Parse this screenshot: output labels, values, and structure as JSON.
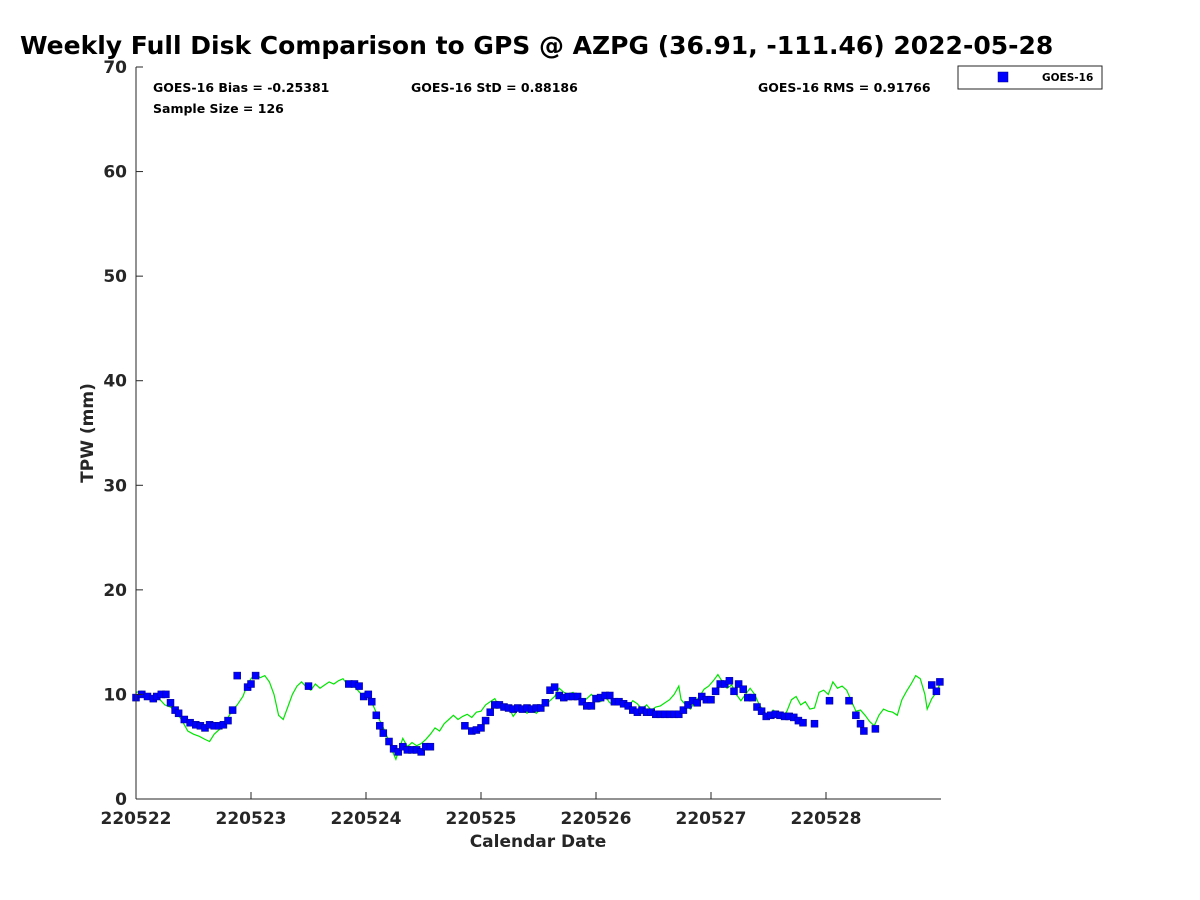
{
  "chart_data": {
    "type": "scatter",
    "title": "Weekly Full Disk Comparison to GPS @ AZPG (36.91, -111.46) 2022-05-28",
    "xlabel": "Calendar Date",
    "ylabel": "TPW (mm)",
    "xlim": [
      0,
      7
    ],
    "ylim": [
      0,
      70
    ],
    "x_unit": "days since 220522 00Z",
    "xticks": [
      {
        "value": 0,
        "label": "220522"
      },
      {
        "value": 1,
        "label": "220523"
      },
      {
        "value": 2,
        "label": "220524"
      },
      {
        "value": 3,
        "label": "220525"
      },
      {
        "value": 4,
        "label": "220526"
      },
      {
        "value": 5,
        "label": "220527"
      },
      {
        "value": 6,
        "label": "220528"
      }
    ],
    "yticks": [
      0,
      10,
      20,
      30,
      40,
      50,
      60,
      70
    ],
    "grid": false,
    "legend": {
      "position": "top-right outside",
      "entries": [
        "GOES-16"
      ]
    },
    "stats": {
      "bias": "GOES-16 Bias = -0.25381",
      "std": "GOES-16 StD = 0.88186",
      "rms": "GOES-16 RMS = 0.91766",
      "sample": "Sample Size = 126"
    },
    "series": [
      {
        "name": "GOES-16",
        "kind": "scatter",
        "marker": "square",
        "color": "#0000ff",
        "points": [
          [
            0.0,
            9.7
          ],
          [
            0.05,
            10.0
          ],
          [
            0.1,
            9.8
          ],
          [
            0.15,
            9.6
          ],
          [
            0.18,
            9.8
          ],
          [
            0.22,
            10.0
          ],
          [
            0.26,
            10.0
          ],
          [
            0.3,
            9.2
          ],
          [
            0.34,
            8.5
          ],
          [
            0.37,
            8.2
          ],
          [
            0.42,
            7.6
          ],
          [
            0.47,
            7.3
          ],
          [
            0.52,
            7.1
          ],
          [
            0.56,
            7.0
          ],
          [
            0.6,
            6.8
          ],
          [
            0.64,
            7.1
          ],
          [
            0.68,
            7.0
          ],
          [
            0.72,
            7.0
          ],
          [
            0.76,
            7.1
          ],
          [
            0.8,
            7.5
          ],
          [
            0.84,
            8.5
          ],
          [
            0.88,
            11.8
          ],
          [
            0.97,
            10.7
          ],
          [
            1.0,
            11.0
          ],
          [
            1.04,
            11.8
          ],
          [
            1.5,
            10.8
          ],
          [
            1.85,
            11.0
          ],
          [
            1.9,
            11.0
          ],
          [
            1.94,
            10.8
          ],
          [
            1.98,
            9.8
          ],
          [
            2.02,
            10.0
          ],
          [
            2.05,
            9.3
          ],
          [
            2.09,
            8.0
          ],
          [
            2.12,
            7.0
          ],
          [
            2.15,
            6.3
          ],
          [
            2.2,
            5.5
          ],
          [
            2.24,
            4.8
          ],
          [
            2.28,
            4.5
          ],
          [
            2.32,
            5.0
          ],
          [
            2.36,
            4.7
          ],
          [
            2.4,
            4.7
          ],
          [
            2.44,
            4.7
          ],
          [
            2.48,
            4.5
          ],
          [
            2.52,
            5.0
          ],
          [
            2.56,
            5.0
          ],
          [
            2.86,
            7.0
          ],
          [
            2.92,
            6.5
          ],
          [
            2.96,
            6.6
          ],
          [
            3.0,
            6.8
          ],
          [
            3.04,
            7.5
          ],
          [
            3.08,
            8.3
          ],
          [
            3.12,
            9.0
          ],
          [
            3.16,
            9.0
          ],
          [
            3.2,
            8.8
          ],
          [
            3.24,
            8.7
          ],
          [
            3.28,
            8.6
          ],
          [
            3.32,
            8.7
          ],
          [
            3.36,
            8.6
          ],
          [
            3.4,
            8.7
          ],
          [
            3.44,
            8.6
          ],
          [
            3.48,
            8.7
          ],
          [
            3.52,
            8.7
          ],
          [
            3.56,
            9.2
          ],
          [
            3.6,
            10.4
          ],
          [
            3.64,
            10.7
          ],
          [
            3.68,
            9.9
          ],
          [
            3.72,
            9.7
          ],
          [
            3.76,
            9.8
          ],
          [
            3.8,
            9.8
          ],
          [
            3.84,
            9.8
          ],
          [
            3.88,
            9.3
          ],
          [
            3.92,
            8.9
          ],
          [
            3.96,
            8.9
          ],
          [
            4.0,
            9.6
          ],
          [
            4.04,
            9.7
          ],
          [
            4.08,
            9.9
          ],
          [
            4.12,
            9.9
          ],
          [
            4.16,
            9.3
          ],
          [
            4.2,
            9.3
          ],
          [
            4.24,
            9.1
          ],
          [
            4.28,
            8.9
          ],
          [
            4.32,
            8.5
          ],
          [
            4.36,
            8.3
          ],
          [
            4.4,
            8.5
          ],
          [
            4.44,
            8.3
          ],
          [
            4.48,
            8.3
          ],
          [
            4.52,
            8.1
          ],
          [
            4.56,
            8.1
          ],
          [
            4.6,
            8.1
          ],
          [
            4.64,
            8.1
          ],
          [
            4.68,
            8.1
          ],
          [
            4.72,
            8.1
          ],
          [
            4.76,
            8.5
          ],
          [
            4.8,
            9.0
          ],
          [
            4.84,
            9.4
          ],
          [
            4.88,
            9.2
          ],
          [
            4.92,
            9.8
          ],
          [
            4.96,
            9.5
          ],
          [
            5.0,
            9.5
          ],
          [
            5.04,
            10.3
          ],
          [
            5.08,
            11.0
          ],
          [
            5.12,
            11.0
          ],
          [
            5.16,
            11.3
          ],
          [
            5.2,
            10.3
          ],
          [
            5.24,
            11.0
          ],
          [
            5.28,
            10.5
          ],
          [
            5.32,
            9.7
          ],
          [
            5.36,
            9.7
          ],
          [
            5.4,
            8.8
          ],
          [
            5.44,
            8.4
          ],
          [
            5.48,
            7.9
          ],
          [
            5.52,
            8.0
          ],
          [
            5.56,
            8.1
          ],
          [
            5.6,
            8.0
          ],
          [
            5.64,
            7.9
          ],
          [
            5.68,
            7.9
          ],
          [
            5.72,
            7.8
          ],
          [
            5.76,
            7.5
          ],
          [
            5.8,
            7.3
          ],
          [
            5.9,
            7.2
          ],
          [
            6.03,
            9.4
          ],
          [
            6.2,
            9.4
          ],
          [
            6.26,
            8.0
          ],
          [
            6.3,
            7.2
          ],
          [
            6.33,
            6.5
          ],
          [
            6.43,
            6.7
          ],
          [
            6.92,
            10.9
          ],
          [
            6.96,
            10.3
          ],
          [
            6.99,
            11.2
          ]
        ]
      },
      {
        "name": "GPS",
        "kind": "line",
        "color": "#00e600",
        "points": [
          [
            0.0,
            10.2
          ],
          [
            0.05,
            10.3
          ],
          [
            0.1,
            10.0
          ],
          [
            0.15,
            9.4
          ],
          [
            0.2,
            9.6
          ],
          [
            0.25,
            9.0
          ],
          [
            0.3,
            8.8
          ],
          [
            0.35,
            8.3
          ],
          [
            0.4,
            7.5
          ],
          [
            0.45,
            6.5
          ],
          [
            0.5,
            6.2
          ],
          [
            0.55,
            6.0
          ],
          [
            0.6,
            5.7
          ],
          [
            0.64,
            5.5
          ],
          [
            0.68,
            6.2
          ],
          [
            0.72,
            6.6
          ],
          [
            0.76,
            7.0
          ],
          [
            0.8,
            7.8
          ],
          [
            0.84,
            8.5
          ],
          [
            0.88,
            9.0
          ],
          [
            0.93,
            9.8
          ],
          [
            0.97,
            11.0
          ],
          [
            1.0,
            11.5
          ],
          [
            1.04,
            12.0
          ],
          [
            1.08,
            11.6
          ],
          [
            1.12,
            11.8
          ],
          [
            1.16,
            11.2
          ],
          [
            1.2,
            10.0
          ],
          [
            1.24,
            8.0
          ],
          [
            1.28,
            7.6
          ],
          [
            1.32,
            8.8
          ],
          [
            1.36,
            10.0
          ],
          [
            1.4,
            10.8
          ],
          [
            1.44,
            11.2
          ],
          [
            1.48,
            10.7
          ],
          [
            1.52,
            10.4
          ],
          [
            1.56,
            11.0
          ],
          [
            1.6,
            10.6
          ],
          [
            1.64,
            10.9
          ],
          [
            1.68,
            11.2
          ],
          [
            1.72,
            11.0
          ],
          [
            1.76,
            11.3
          ],
          [
            1.8,
            11.5
          ],
          [
            1.84,
            10.9
          ],
          [
            1.88,
            11.0
          ],
          [
            1.92,
            10.5
          ],
          [
            1.96,
            10.0
          ],
          [
            2.0,
            10.2
          ],
          [
            2.04,
            9.5
          ],
          [
            2.08,
            8.5
          ],
          [
            2.12,
            7.5
          ],
          [
            2.16,
            6.6
          ],
          [
            2.2,
            5.5
          ],
          [
            2.24,
            4.3
          ],
          [
            2.26,
            3.8
          ],
          [
            2.28,
            4.5
          ],
          [
            2.32,
            5.8
          ],
          [
            2.36,
            5.0
          ],
          [
            2.4,
            5.4
          ],
          [
            2.44,
            5.1
          ],
          [
            2.48,
            5.3
          ],
          [
            2.52,
            5.7
          ],
          [
            2.56,
            6.2
          ],
          [
            2.6,
            6.8
          ],
          [
            2.64,
            6.5
          ],
          [
            2.68,
            7.2
          ],
          [
            2.72,
            7.6
          ],
          [
            2.76,
            8.0
          ],
          [
            2.8,
            7.6
          ],
          [
            2.84,
            7.9
          ],
          [
            2.88,
            8.1
          ],
          [
            2.92,
            7.8
          ],
          [
            2.96,
            8.3
          ],
          [
            3.0,
            8.4
          ],
          [
            3.04,
            9.0
          ],
          [
            3.08,
            9.3
          ],
          [
            3.12,
            9.6
          ],
          [
            3.16,
            8.8
          ],
          [
            3.2,
            8.6
          ],
          [
            3.24,
            8.8
          ],
          [
            3.28,
            7.9
          ],
          [
            3.32,
            8.5
          ],
          [
            3.36,
            8.7
          ],
          [
            3.4,
            8.2
          ],
          [
            3.44,
            8.8
          ],
          [
            3.48,
            8.2
          ],
          [
            3.52,
            8.6
          ],
          [
            3.56,
            9.0
          ],
          [
            3.6,
            9.4
          ],
          [
            3.64,
            9.8
          ],
          [
            3.68,
            10.6
          ],
          [
            3.72,
            10.2
          ],
          [
            3.76,
            10.0
          ],
          [
            3.8,
            10.2
          ],
          [
            3.84,
            9.7
          ],
          [
            3.88,
            9.2
          ],
          [
            3.92,
            9.6
          ],
          [
            3.96,
            10.0
          ],
          [
            4.0,
            9.5
          ],
          [
            4.04,
            9.3
          ],
          [
            4.08,
            9.8
          ],
          [
            4.12,
            9.2
          ],
          [
            4.16,
            9.0
          ],
          [
            4.2,
            9.4
          ],
          [
            4.24,
            9.3
          ],
          [
            4.28,
            8.8
          ],
          [
            4.32,
            9.4
          ],
          [
            4.36,
            9.1
          ],
          [
            4.4,
            8.6
          ],
          [
            4.44,
            9.0
          ],
          [
            4.48,
            8.5
          ],
          [
            4.52,
            8.8
          ],
          [
            4.56,
            8.9
          ],
          [
            4.6,
            9.2
          ],
          [
            4.64,
            9.5
          ],
          [
            4.68,
            10.0
          ],
          [
            4.72,
            10.8
          ],
          [
            4.74,
            9.5
          ],
          [
            4.78,
            9.0
          ],
          [
            4.82,
            8.6
          ],
          [
            4.86,
            9.3
          ],
          [
            4.9,
            9.8
          ],
          [
            4.94,
            10.5
          ],
          [
            4.98,
            10.8
          ],
          [
            5.02,
            11.3
          ],
          [
            5.06,
            11.9
          ],
          [
            5.1,
            11.2
          ],
          [
            5.14,
            10.6
          ],
          [
            5.18,
            10.9
          ],
          [
            5.22,
            10.0
          ],
          [
            5.26,
            9.4
          ],
          [
            5.3,
            10.0
          ],
          [
            5.34,
            10.6
          ],
          [
            5.38,
            10.0
          ],
          [
            5.42,
            9.0
          ],
          [
            5.46,
            8.4
          ],
          [
            5.5,
            7.8
          ],
          [
            5.54,
            8.5
          ],
          [
            5.58,
            8.2
          ],
          [
            5.62,
            7.8
          ],
          [
            5.66,
            8.4
          ],
          [
            5.7,
            9.5
          ],
          [
            5.74,
            9.8
          ],
          [
            5.78,
            9.0
          ],
          [
            5.82,
            9.3
          ],
          [
            5.86,
            8.6
          ],
          [
            5.9,
            8.7
          ],
          [
            5.94,
            10.2
          ],
          [
            5.98,
            10.4
          ],
          [
            6.02,
            10.0
          ],
          [
            6.06,
            11.2
          ],
          [
            6.1,
            10.6
          ],
          [
            6.14,
            10.8
          ],
          [
            6.18,
            10.4
          ],
          [
            6.22,
            9.4
          ],
          [
            6.26,
            8.4
          ],
          [
            6.3,
            8.5
          ],
          [
            6.34,
            8.0
          ],
          [
            6.38,
            7.4
          ],
          [
            6.42,
            7.0
          ],
          [
            6.46,
            8.0
          ],
          [
            6.5,
            8.6
          ],
          [
            6.54,
            8.4
          ],
          [
            6.58,
            8.3
          ],
          [
            6.62,
            8.0
          ],
          [
            6.66,
            9.5
          ],
          [
            6.7,
            10.3
          ],
          [
            6.74,
            11.0
          ],
          [
            6.78,
            11.8
          ],
          [
            6.82,
            11.5
          ],
          [
            6.86,
            10.0
          ],
          [
            6.88,
            8.6
          ],
          [
            6.92,
            9.6
          ],
          [
            6.96,
            10.2
          ],
          [
            6.99,
            11.0
          ]
        ]
      }
    ]
  }
}
